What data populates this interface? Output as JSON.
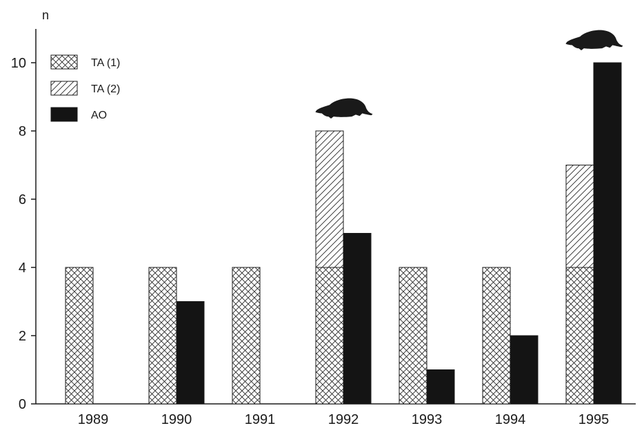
{
  "chart_data": {
    "type": "bar",
    "ylabel": "n",
    "ylim": [
      0,
      11
    ],
    "yticks": [
      0,
      2,
      4,
      6,
      8,
      10
    ],
    "grid": false,
    "legend_position": "top-left",
    "categories": [
      "1989",
      "1990",
      "1991",
      "1992",
      "1993",
      "1994",
      "1995"
    ],
    "series": [
      {
        "name": "TA (1)",
        "pattern": "crosshatch",
        "color": "#2a2a2a",
        "group": "TA",
        "values": [
          4,
          4,
          4,
          4,
          4,
          4,
          4
        ]
      },
      {
        "name": "TA (2)",
        "pattern": "diagonal",
        "color": "#2a2a2a",
        "group": "TA",
        "stacked_on": "TA (1)",
        "values": [
          0,
          0,
          0,
          4,
          0,
          0,
          3
        ]
      },
      {
        "name": "AO",
        "pattern": "solid",
        "color": "#141414",
        "group": "AO",
        "values": [
          0,
          3,
          0,
          5,
          1,
          2,
          10
        ]
      }
    ],
    "annotations": [
      {
        "type": "mole-silhouette-icon",
        "category": "1992"
      },
      {
        "type": "mole-silhouette-icon",
        "category": "1995"
      }
    ]
  }
}
